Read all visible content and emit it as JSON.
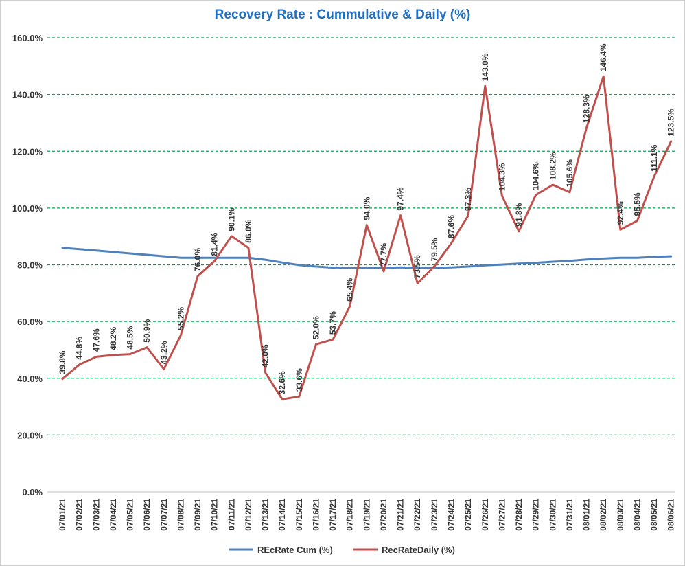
{
  "chart_data": {
    "type": "line",
    "title": "Recovery Rate : Cummulative & Daily (%)",
    "xlabel": "",
    "ylabel": "",
    "ylim": [
      0,
      160
    ],
    "y_ticks": [
      0,
      20,
      40,
      60,
      80,
      100,
      120,
      140,
      160
    ],
    "y_tick_labels": [
      "0.0%",
      "20.0%",
      "40.0%",
      "60.0%",
      "80.0%",
      "100.0%",
      "120.0%",
      "140.0%",
      "160.0%"
    ],
    "grid": "horizontal dashed",
    "legend_position": "bottom-center",
    "categories": [
      "07/01/21",
      "07/02/21",
      "07/03/21",
      "07/04/21",
      "07/05/21",
      "07/06/21",
      "07/07/21",
      "07/08/21",
      "07/09/21",
      "07/10/21",
      "07/11/21",
      "07/12/21",
      "07/13/21",
      "07/14/21",
      "07/15/21",
      "07/16/21",
      "07/17/21",
      "07/18/21",
      "07/19/21",
      "07/20/21",
      "07/21/21",
      "07/22/21",
      "07/23/21",
      "07/24/21",
      "07/25/21",
      "07/26/21",
      "07/27/21",
      "07/28/21",
      "07/29/21",
      "07/30/21",
      "07/31/21",
      "08/01/21",
      "08/02/21",
      "08/03/21",
      "08/04/21",
      "08/05/21",
      "08/06/21"
    ],
    "series": [
      {
        "name": "REcRate Cum (%)",
        "color": "#4f81bd",
        "values": [
          86.0,
          85.5,
          85.0,
          84.5,
          84.0,
          83.5,
          83.0,
          82.5,
          82.5,
          82.5,
          82.5,
          82.5,
          81.8,
          80.8,
          79.9,
          79.4,
          79.0,
          78.8,
          78.9,
          78.9,
          79.1,
          78.9,
          78.9,
          79.1,
          79.4,
          79.8,
          80.1,
          80.4,
          80.7,
          81.1,
          81.4,
          81.9,
          82.2,
          82.5,
          82.5,
          82.8,
          83.0
        ],
        "show_labels": false
      },
      {
        "name": "RecRateDaily (%)",
        "color": "#c0504d",
        "values": [
          39.8,
          44.8,
          47.6,
          48.2,
          48.5,
          50.9,
          43.2,
          55.2,
          76.0,
          81.4,
          90.1,
          86.0,
          42.0,
          32.6,
          33.6,
          52.0,
          53.7,
          65.4,
          94.0,
          77.7,
          97.4,
          73.5,
          79.5,
          87.6,
          97.3,
          143.0,
          104.3,
          91.8,
          104.6,
          108.2,
          105.6,
          128.3,
          146.4,
          92.4,
          95.5,
          111.1,
          123.5
        ],
        "labels": [
          "39.8%",
          "44.8%",
          "47.6%",
          "48.2%",
          "48.5%",
          "50.9%",
          "43.2%",
          "55.2%",
          "76.0%",
          "81.4%",
          "90.1%",
          "86.0%",
          "42.0%",
          "32.6%",
          "33.6%",
          "52.0%",
          "53.7%",
          "65.4%",
          "94.0%",
          "77.7%",
          "97.4%",
          "73.5%",
          "79.5%",
          "87.6%",
          "97.3%",
          "143.0%",
          "104.3%",
          "91.8%",
          "104.6%",
          "108.2%",
          "105.6%",
          "128.3%",
          "146.4%",
          "92.4%",
          "95.5%",
          "111.1%",
          "123.5%"
        ],
        "show_labels": true
      }
    ],
    "colors": {
      "title": "#1f6fc5",
      "grid": "#00a651",
      "axis": "#bfbfbf",
      "text": "#333333"
    }
  }
}
